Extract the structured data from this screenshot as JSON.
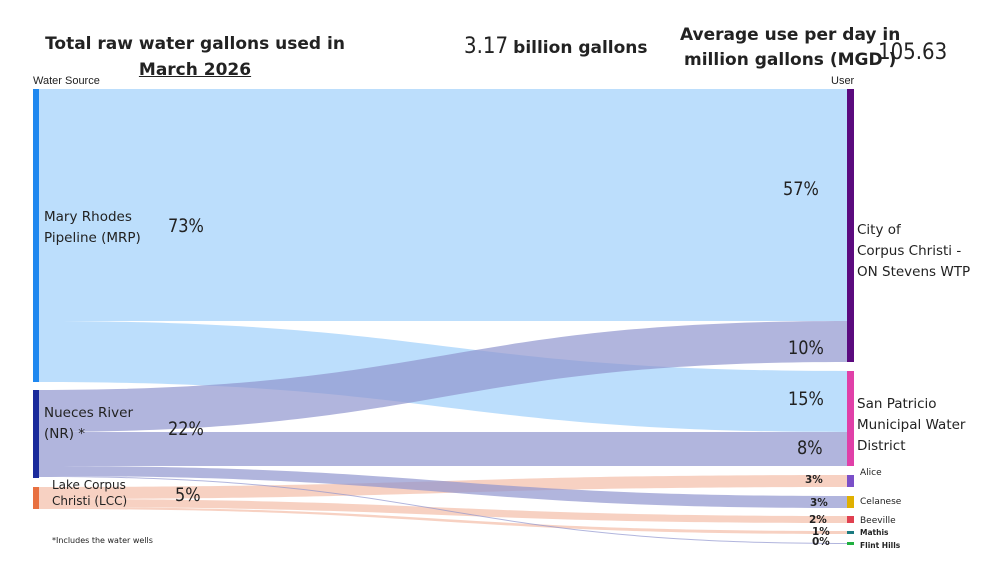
{
  "header": {
    "title_line1": "Total raw water gallons used in",
    "title_line2": "March 2026",
    "total_value": "3.17",
    "total_unit": "billion gallons",
    "avg_label_line1": "Average use per day in",
    "avg_label_line2": "million gallons (MGD )",
    "avg_value": "105.63"
  },
  "diagram": {
    "source_header": "Water Source",
    "target_header": "User",
    "footnote": "*Includes the water wells",
    "sources": [
      {
        "id": "mrp",
        "label_line1": "Mary Rhodes",
        "label_line2": "Pipeline (MRP)",
        "pct": "73%",
        "color": "#1e88f0",
        "flow_color": "#9fd0fb"
      },
      {
        "id": "nr",
        "label_line1": "Nueces River",
        "label_line2": "(NR) *",
        "pct": "22%",
        "color": "#1a2a9c",
        "flow_color": "#9096cf"
      },
      {
        "id": "lcc",
        "label_line1": "Lake Corpus",
        "label_line2": "Christi (LCC)",
        "pct": "5%",
        "color": "#e87040",
        "flow_color": "#f3bea8"
      }
    ],
    "targets": [
      {
        "id": "cc",
        "label_lines": [
          "City of",
          "Corpus Christi -",
          "ON Stevens WTP"
        ],
        "color": "#5b0a7e"
      },
      {
        "id": "sp",
        "label_lines": [
          "San Patricio",
          "Municipal Water",
          "District"
        ],
        "color": "#e040a8"
      },
      {
        "id": "alice",
        "label_lines": [
          "Alice"
        ],
        "color": "#7a4fc8"
      },
      {
        "id": "celanese",
        "label_lines": [
          "Celanese"
        ],
        "color": "#e0b000"
      },
      {
        "id": "beeville",
        "label_lines": [
          "Beeville"
        ],
        "color": "#e04050"
      },
      {
        "id": "mathis",
        "label_lines": [
          "Mathis"
        ],
        "color": "#1a7a80"
      },
      {
        "id": "flint",
        "label_lines": [
          "Flint Hills"
        ],
        "color": "#20b040"
      }
    ],
    "flows": [
      {
        "from": "mrp",
        "to": "cc",
        "pct": "57%"
      },
      {
        "from": "mrp",
        "to": "sp",
        "pct": "15%"
      },
      {
        "from": "nr",
        "to": "cc",
        "pct": "10%"
      },
      {
        "from": "nr",
        "to": "sp",
        "pct": "8%"
      },
      {
        "from": "lcc",
        "to": "alice",
        "pct": "3%"
      },
      {
        "from": "nr",
        "to": "celanese",
        "pct": "3%"
      },
      {
        "from": "lcc",
        "to": "beeville",
        "pct": "2%"
      },
      {
        "from": "lcc",
        "to": "mathis",
        "pct": "1%"
      },
      {
        "from": "nr",
        "to": "flint",
        "pct": "0%"
      }
    ]
  }
}
